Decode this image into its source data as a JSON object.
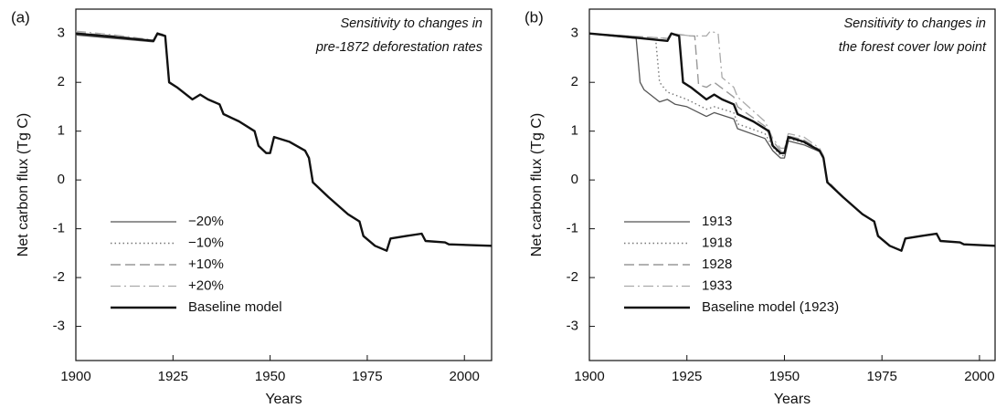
{
  "chart_data": [
    {
      "type": "line",
      "panel_label": "(a)",
      "annotation": [
        "Sensitivity to changes in",
        "pre-1872 deforestation rates"
      ],
      "xlabel": "Years",
      "ylabel": "Net carbon flux (Tg C)",
      "xlim": [
        1900,
        2007
      ],
      "ylim": [
        -3.7,
        3.5
      ],
      "xticks": [
        1900,
        1925,
        1950,
        1975,
        2000
      ],
      "yticks": [
        -3,
        -2,
        -1,
        0,
        1,
        2,
        3
      ],
      "x": [
        1900,
        1910,
        1920,
        1921,
        1923,
        1924,
        1926,
        1930,
        1932,
        1934,
        1937,
        1938,
        1942,
        1946,
        1947,
        1949,
        1950,
        1951,
        1955,
        1959,
        1960,
        1961,
        1965,
        1970,
        1973,
        1974,
        1977,
        1980,
        1981,
        1985,
        1989,
        1990,
        1995,
        1996,
        2007
      ],
      "series": [
        {
          "name": "−20%",
          "color": "#555555",
          "style": "solid",
          "values": [
            2.97,
            2.9,
            2.83,
            2.98,
            2.94,
            2.0,
            1.9,
            1.65,
            1.75,
            1.65,
            1.55,
            1.35,
            1.2,
            1.0,
            0.7,
            0.55,
            0.55,
            0.88,
            0.78,
            0.6,
            0.45,
            -0.05,
            -0.35,
            -0.7,
            -0.85,
            -1.15,
            -1.35,
            -1.45,
            -1.2,
            -1.15,
            -1.1,
            -1.25,
            -1.28,
            -1.32,
            -1.35
          ]
        },
        {
          "name": "−10%",
          "color": "#777777",
          "style": "dotted",
          "values": [
            2.99,
            2.92,
            2.84,
            2.99,
            2.95,
            2.0,
            1.9,
            1.65,
            1.75,
            1.65,
            1.55,
            1.35,
            1.2,
            1.0,
            0.7,
            0.55,
            0.55,
            0.88,
            0.78,
            0.6,
            0.45,
            -0.05,
            -0.35,
            -0.7,
            -0.85,
            -1.15,
            -1.35,
            -1.45,
            -1.2,
            -1.15,
            -1.1,
            -1.25,
            -1.28,
            -1.32,
            -1.35
          ]
        },
        {
          "name": "+10%",
          "color": "#999999",
          "style": "dashed",
          "values": [
            3.02,
            2.95,
            2.86,
            3.01,
            2.96,
            2.0,
            1.9,
            1.65,
            1.75,
            1.65,
            1.55,
            1.35,
            1.2,
            1.0,
            0.7,
            0.55,
            0.55,
            0.88,
            0.78,
            0.6,
            0.45,
            -0.05,
            -0.35,
            -0.7,
            -0.85,
            -1.15,
            -1.35,
            -1.45,
            -1.2,
            -1.15,
            -1.1,
            -1.25,
            -1.28,
            -1.32,
            -1.35
          ]
        },
        {
          "name": "+20%",
          "color": "#aaaaaa",
          "style": "dashdot",
          "values": [
            3.05,
            2.97,
            2.87,
            3.02,
            2.97,
            2.0,
            1.9,
            1.65,
            1.75,
            1.65,
            1.55,
            1.35,
            1.2,
            1.0,
            0.7,
            0.55,
            0.55,
            0.88,
            0.78,
            0.6,
            0.45,
            -0.05,
            -0.35,
            -0.7,
            -0.85,
            -1.15,
            -1.35,
            -1.45,
            -1.2,
            -1.15,
            -1.1,
            -1.25,
            -1.28,
            -1.32,
            -1.35
          ]
        },
        {
          "name": "Baseline model",
          "color": "#111111",
          "style": "thick",
          "values": [
            3.0,
            2.93,
            2.85,
            3.0,
            2.95,
            2.0,
            1.9,
            1.65,
            1.75,
            1.65,
            1.55,
            1.35,
            1.2,
            1.0,
            0.7,
            0.55,
            0.55,
            0.88,
            0.78,
            0.6,
            0.45,
            -0.05,
            -0.35,
            -0.7,
            -0.85,
            -1.15,
            -1.35,
            -1.45,
            -1.2,
            -1.15,
            -1.1,
            -1.25,
            -1.28,
            -1.32,
            -1.35
          ]
        }
      ]
    },
    {
      "type": "line",
      "panel_label": "(b)",
      "annotation": [
        "Sensitivity to changes in",
        "the forest cover low point"
      ],
      "xlabel": "Years",
      "ylabel": "Net carbon flux (Tg C)",
      "xlim": [
        1900,
        2004
      ],
      "ylim": [
        -3.7,
        3.5
      ],
      "xticks": [
        1900,
        1925,
        1950,
        1975,
        2000
      ],
      "yticks": [
        -3,
        -2,
        -1,
        0,
        1,
        2,
        3
      ],
      "series": [
        {
          "name": "1913",
          "color": "#555555",
          "style": "solid",
          "x": [
            1900,
            1912,
            1913,
            1914,
            1918,
            1920,
            1922,
            1925,
            1930,
            1932,
            1937,
            1938,
            1945,
            1947,
            1949,
            1950,
            1951,
            1955,
            1959,
            1960,
            1961,
            1965,
            1970,
            1973,
            1974,
            1977,
            1980,
            1981,
            1985,
            1989,
            1990,
            1995,
            1996,
            2004
          ],
          "values": [
            3.0,
            2.9,
            2.0,
            1.85,
            1.6,
            1.65,
            1.55,
            1.5,
            1.3,
            1.38,
            1.25,
            1.05,
            0.85,
            0.6,
            0.45,
            0.45,
            0.8,
            0.72,
            0.58,
            0.45,
            -0.05,
            -0.35,
            -0.7,
            -0.85,
            -1.15,
            -1.35,
            -1.45,
            -1.2,
            -1.15,
            -1.1,
            -1.25,
            -1.28,
            -1.32,
            -1.35
          ]
        },
        {
          "name": "1918",
          "color": "#777777",
          "style": "dotted",
          "x": [
            1900,
            1917,
            1918,
            1920,
            1925,
            1930,
            1932,
            1937,
            1938,
            1945,
            1947,
            1949,
            1950,
            1951,
            1955,
            1959,
            1960,
            1961,
            1965,
            1970,
            1973,
            1974,
            1977,
            1980,
            1981,
            1985,
            1989,
            1990,
            1995,
            1996,
            2004
          ],
          "values": [
            3.0,
            2.88,
            2.0,
            1.8,
            1.65,
            1.45,
            1.5,
            1.38,
            1.15,
            0.95,
            0.68,
            0.5,
            0.5,
            0.85,
            0.76,
            0.6,
            0.45,
            -0.05,
            -0.35,
            -0.7,
            -0.85,
            -1.15,
            -1.35,
            -1.45,
            -1.2,
            -1.15,
            -1.1,
            -1.25,
            -1.28,
            -1.32,
            -1.35
          ]
        },
        {
          "name": "1928",
          "color": "#999999",
          "style": "dashed",
          "x": [
            1900,
            1920,
            1921,
            1926,
            1927,
            1928,
            1930,
            1932,
            1937,
            1938,
            1945,
            1947,
            1949,
            1950,
            1951,
            1955,
            1959,
            1960,
            1961,
            1965,
            1970,
            1973,
            1974,
            1977,
            1980,
            1981,
            1985,
            1989,
            1990,
            1995,
            1996,
            2004
          ],
          "values": [
            3.0,
            2.9,
            3.0,
            2.95,
            2.95,
            1.95,
            1.9,
            2.0,
            1.7,
            1.5,
            1.1,
            0.8,
            0.6,
            0.6,
            0.9,
            0.82,
            0.62,
            0.47,
            -0.03,
            -0.35,
            -0.7,
            -0.85,
            -1.15,
            -1.35,
            -1.45,
            -1.2,
            -1.15,
            -1.1,
            -1.25,
            -1.28,
            -1.32,
            -1.35
          ]
        },
        {
          "name": "1933",
          "color": "#aaaaaa",
          "style": "dashdot",
          "x": [
            1900,
            1920,
            1921,
            1926,
            1930,
            1931,
            1933,
            1934,
            1937,
            1938,
            1945,
            1947,
            1949,
            1950,
            1951,
            1955,
            1959,
            1960,
            1961,
            1965,
            1970,
            1973,
            1974,
            1977,
            1980,
            1981,
            1985,
            1989,
            1990,
            1995,
            1996,
            2004
          ],
          "values": [
            3.0,
            2.9,
            3.0,
            2.95,
            2.95,
            3.05,
            3.0,
            2.1,
            1.9,
            1.7,
            1.2,
            0.85,
            0.65,
            0.65,
            0.95,
            0.88,
            0.65,
            0.5,
            0.0,
            -0.35,
            -0.7,
            -0.85,
            -1.15,
            -1.35,
            -1.45,
            -1.2,
            -1.15,
            -1.1,
            -1.25,
            -1.28,
            -1.32,
            -1.35
          ]
        },
        {
          "name": "Baseline model (1923)",
          "color": "#111111",
          "style": "thick",
          "x": [
            1900,
            1910,
            1920,
            1921,
            1923,
            1924,
            1926,
            1930,
            1932,
            1934,
            1937,
            1938,
            1942,
            1946,
            1947,
            1949,
            1950,
            1951,
            1955,
            1959,
            1960,
            1961,
            1965,
            1970,
            1973,
            1974,
            1977,
            1980,
            1981,
            1985,
            1989,
            1990,
            1995,
            1996,
            2004
          ],
          "values": [
            3.0,
            2.93,
            2.85,
            3.0,
            2.95,
            2.0,
            1.9,
            1.65,
            1.75,
            1.65,
            1.55,
            1.35,
            1.2,
            1.0,
            0.7,
            0.55,
            0.55,
            0.88,
            0.78,
            0.6,
            0.45,
            -0.05,
            -0.35,
            -0.7,
            -0.85,
            -1.15,
            -1.35,
            -1.45,
            -1.2,
            -1.15,
            -1.1,
            -1.25,
            -1.28,
            -1.32,
            -1.35
          ]
        }
      ]
    }
  ]
}
